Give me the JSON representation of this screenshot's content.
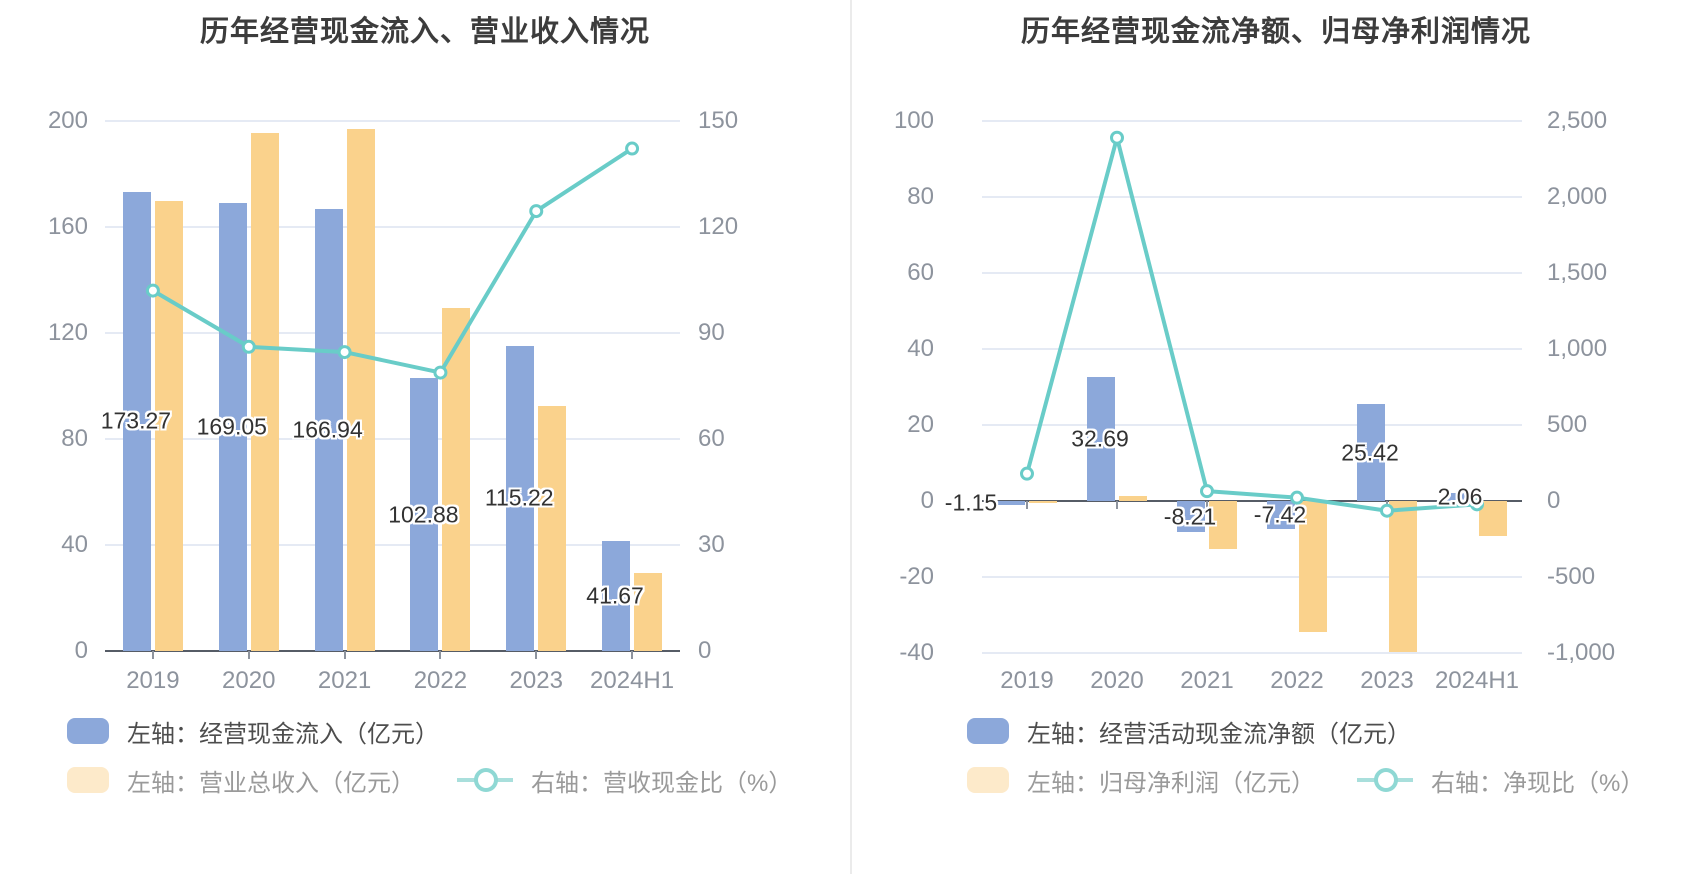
{
  "colors": {
    "bar_blue": "#8CA8DA",
    "bar_orange": "#FAD28C",
    "legend_orange_pale": "#FDEACA",
    "line_teal": "#69CCC8",
    "legend_teal": "#A9DFDC",
    "grid": "#E5EAF4",
    "axis_dark": "#565C66",
    "tick_label": "#8D939D",
    "value_label": "#323232",
    "title": "#3C3C3C"
  },
  "chart_data": [
    {
      "type": "bar",
      "title": "历年经营现金流入、营业收入情况",
      "categories": [
        "2019",
        "2020",
        "2021",
        "2022",
        "2023",
        "2024H1"
      ],
      "series": [
        {
          "key": "cash-inflow",
          "name": "左轴：经营现金流入（亿元）",
          "type": "bar",
          "axis": "left",
          "values": [
            173.27,
            169.05,
            166.94,
            102.88,
            115.22,
            41.67
          ],
          "labels": [
            "173.27",
            "169.05",
            "166.94",
            "102.88",
            "115.22",
            "41.67"
          ],
          "labeled": true
        },
        {
          "key": "total-revenue",
          "name": "左轴：营业总收入（亿元）",
          "type": "bar",
          "axis": "left",
          "values": [
            169.9,
            195.3,
            196.9,
            129.5,
            92.5,
            29.3
          ],
          "labeled": false
        },
        {
          "key": "revenue-cash-ratio",
          "name": "右轴：营收现金比（%）",
          "type": "line",
          "axis": "right",
          "values": [
            102.0,
            86.1,
            84.6,
            78.8,
            124.5,
            142.2
          ]
        }
      ],
      "left_axis": {
        "min": 0,
        "max": 200,
        "ticks": [
          200,
          160,
          120,
          80,
          40,
          0
        ],
        "labels": [
          "200",
          "160",
          "120",
          "80",
          "40",
          "0"
        ]
      },
      "right_axis": {
        "min": 0,
        "max": 150,
        "ticks": [
          150,
          120,
          90,
          60,
          30,
          0
        ],
        "labels": [
          "150",
          "120",
          "90",
          "60",
          "30",
          "0"
        ]
      },
      "grid": true,
      "legend_position": "bottom"
    },
    {
      "type": "bar",
      "title": "历年经营现金流净额、归母净利润情况",
      "categories": [
        "2019",
        "2020",
        "2021",
        "2022",
        "2023",
        "2024H1"
      ],
      "series": [
        {
          "key": "operating-net-cashflow",
          "name": "左轴：经营活动现金流净额（亿元）",
          "type": "bar",
          "axis": "left",
          "values": [
            -1.15,
            32.69,
            -8.21,
            -7.42,
            25.42,
            2.06
          ],
          "labels": [
            "-1.15",
            "32.69",
            "-8.21",
            "-7.42",
            "25.42",
            "2.06"
          ],
          "labeled": true
        },
        {
          "key": "net-profit",
          "name": "左轴：归母净利润（亿元）",
          "type": "bar",
          "axis": "left",
          "values": [
            -0.64,
            1.37,
            -12.5,
            -34.5,
            -39.8,
            -9.2
          ],
          "labeled": false
        },
        {
          "key": "net-cash-ratio",
          "name": "右轴：净现比（%）",
          "type": "line",
          "axis": "right",
          "values": [
            180,
            2390,
            65,
            22,
            -64,
            -22
          ]
        }
      ],
      "left_axis": {
        "min": -40,
        "max": 100,
        "ticks": [
          100,
          80,
          60,
          40,
          20,
          0,
          -20,
          -40
        ],
        "labels": [
          "100",
          "80",
          "60",
          "40",
          "20",
          "0",
          "-20",
          "-40"
        ]
      },
      "right_axis": {
        "min": -1000,
        "max": 2500,
        "ticks": [
          2500,
          2000,
          1500,
          1000,
          500,
          0,
          -500,
          -1000
        ],
        "labels": [
          "2,500",
          "2,000",
          "1,500",
          "1,000",
          "500",
          "0",
          "-500",
          "-1,000"
        ]
      },
      "grid": true,
      "legend_position": "bottom"
    }
  ]
}
